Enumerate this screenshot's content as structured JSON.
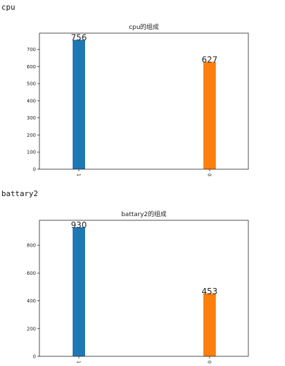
{
  "sections": [
    {
      "label": "cpu"
    },
    {
      "label": "battary2"
    }
  ],
  "chart_data": [
    {
      "type": "bar",
      "title": "cpu的组成",
      "categories": [
        "1",
        "0"
      ],
      "values": [
        756,
        627
      ],
      "colors": [
        "#1f77b4",
        "#ff7f0e"
      ],
      "ylim": [
        0,
        795
      ],
      "yticks": [
        0,
        100,
        200,
        300,
        400,
        500,
        600,
        700
      ],
      "xlabel": "",
      "ylabel": "",
      "grid": false
    },
    {
      "type": "bar",
      "title": "battary2的组成",
      "categories": [
        "1",
        "0"
      ],
      "values": [
        930,
        453
      ],
      "colors": [
        "#1f77b4",
        "#ff7f0e"
      ],
      "ylim": [
        0,
        980
      ],
      "yticks": [
        0,
        200,
        400,
        600,
        800
      ],
      "xlabel": "",
      "ylabel": "",
      "grid": false
    }
  ]
}
